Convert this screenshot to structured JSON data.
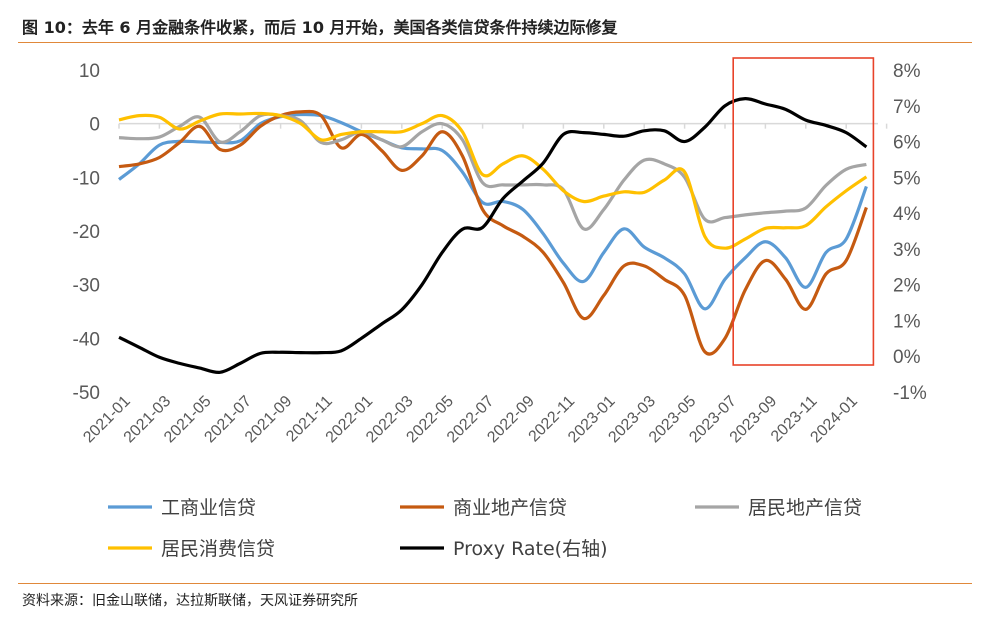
{
  "title": "图 10：去年 6 月金融条件收紧，而后 10 月开始，美国各类信贷条件持续边际修复",
  "source": "资料来源：旧金山联储，达拉斯联储，天风证券研究所",
  "chart_data": {
    "type": "line",
    "title": "",
    "xlabel": "",
    "ylabel": "",
    "ylim": [
      -50,
      10
    ],
    "y_ticks": [
      "10",
      "0",
      "-10",
      "-20",
      "-30",
      "-40",
      "-50"
    ],
    "y2lim": [
      -1,
      8
    ],
    "y2_ticks": [
      "8%",
      "7%",
      "6%",
      "5%",
      "4%",
      "3%",
      "2%",
      "1%",
      "0%",
      "-1%"
    ],
    "x_tick_labels": [
      "2021-01",
      "2021-03",
      "2021-05",
      "2021-07",
      "2021-09",
      "2021-11",
      "2022-01",
      "2022-03",
      "2022-05",
      "2022-07",
      "2022-09",
      "2022-11",
      "2023-01",
      "2023-03",
      "2023-05",
      "2023-07",
      "2023-09",
      "2023-11",
      "2024-01"
    ],
    "x": [
      "2021-01",
      "2021-02",
      "2021-03",
      "2021-04",
      "2021-05",
      "2021-06",
      "2021-07",
      "2021-08",
      "2021-09",
      "2021-10",
      "2021-11",
      "2021-12",
      "2022-01",
      "2022-02",
      "2022-03",
      "2022-04",
      "2022-05",
      "2022-06",
      "2022-07",
      "2022-08",
      "2022-09",
      "2022-10",
      "2022-11",
      "2022-12",
      "2023-01",
      "2023-02",
      "2023-03",
      "2023-04",
      "2023-05",
      "2023-06",
      "2023-07",
      "2023-08",
      "2023-09",
      "2023-10",
      "2023-11",
      "2023-12",
      "2024-01",
      "2024-02"
    ],
    "legend_position": "bottom",
    "grid": false,
    "highlight_box": {
      "from": "2023-08",
      "to": "2024-02",
      "color": "#e8432a"
    },
    "series": [
      {
        "name": "工商业信贷",
        "axis": "left",
        "color": "#5b9bd5",
        "values": [
          -10.4,
          -7.5,
          -4,
          -3.3,
          -3.4,
          -3.5,
          -3.2,
          0,
          1.3,
          1.7,
          1.5,
          0.2,
          -1.5,
          -3,
          -4.5,
          -4.7,
          -5,
          -9,
          -14.7,
          -14.5,
          -16,
          -20.5,
          -26,
          -29.4,
          -24,
          -19.6,
          -23,
          -25,
          -28,
          -34.5,
          -29,
          -25,
          -22,
          -25,
          -30.5,
          -24,
          -21.5,
          -11.7
        ]
      },
      {
        "name": "商业地产信贷",
        "axis": "left",
        "color": "#c55a11",
        "values": [
          -8,
          -7.5,
          -6.3,
          -3.5,
          -0.5,
          -4.8,
          -4,
          -0.5,
          1.5,
          2.2,
          1.5,
          -4.5,
          -2,
          -5,
          -8.7,
          -6,
          -1.5,
          -6,
          -16,
          -19,
          -21,
          -24,
          -29.6,
          -36.3,
          -32,
          -26.5,
          -26.5,
          -29,
          -32,
          -42.5,
          -40,
          -31,
          -25.5,
          -29,
          -34.6,
          -28,
          -25.5,
          -15.6
        ]
      },
      {
        "name": "居民地产信贷",
        "axis": "left",
        "color": "#a5a5a5",
        "values": [
          -2.6,
          -2.8,
          -2.5,
          -0.5,
          1.2,
          -3.4,
          -1.5,
          1.5,
          1.5,
          0.5,
          -3.5,
          -3,
          -1.5,
          -3,
          -4.3,
          -1.5,
          0,
          -3,
          -11,
          -11.4,
          -11.4,
          -11.4,
          -12.3,
          -19.6,
          -16,
          -10.5,
          -6.8,
          -7.5,
          -10,
          -17.8,
          -17.5,
          -17,
          -16.6,
          -16.3,
          -15.7,
          -11.5,
          -8.5,
          -7.6
        ]
      },
      {
        "name": "居民消费信贷",
        "axis": "left",
        "color": "#ffc000",
        "values": [
          0.7,
          1.5,
          1.2,
          -1,
          0.5,
          1.8,
          1.8,
          1.9,
          1.5,
          0,
          -3,
          -2,
          -1.5,
          -1.5,
          -1.5,
          0,
          1.5,
          -1.5,
          -9.5,
          -7.5,
          -6,
          -8.5,
          -12.5,
          -14.5,
          -13.5,
          -12.7,
          -12.8,
          -10.5,
          -9,
          -21,
          -23.2,
          -21.5,
          -19.5,
          -19.4,
          -19,
          -15.5,
          -12.5,
          -9.9
        ]
      },
      {
        "name": "Proxy Rate(右轴)",
        "axis": "right",
        "unit": "%",
        "color": "#000000",
        "values": [
          0.53,
          0.25,
          -0.03,
          -0.2,
          -0.33,
          -0.45,
          -0.2,
          0.08,
          0.11,
          0.1,
          0.1,
          0.15,
          0.5,
          0.9,
          1.3,
          2.0,
          2.9,
          3.55,
          3.6,
          4.4,
          4.9,
          5.4,
          6.2,
          6.25,
          6.2,
          6.15,
          6.3,
          6.3,
          6.0,
          6.4,
          7.0,
          7.2,
          7.05,
          6.9,
          6.6,
          6.45,
          6.25,
          5.85
        ]
      }
    ]
  }
}
